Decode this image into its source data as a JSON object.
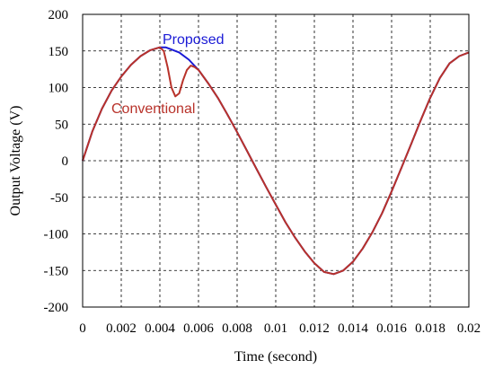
{
  "chart_data": {
    "type": "line",
    "xlabel": "Time (second)",
    "ylabel": "Output Voltage (V)",
    "xlim": [
      0,
      0.02
    ],
    "ylim": [
      -200,
      200
    ],
    "xticks": [
      "0",
      "0.002",
      "0.004",
      "0.006",
      "0.008",
      "0.01",
      "0.012",
      "0.014",
      "0.016",
      "0.018",
      "0.02"
    ],
    "yticks": [
      "200",
      "150",
      "100",
      "50",
      "0",
      "-50",
      "-100",
      "-150",
      "-200"
    ],
    "grid": true,
    "legend": "inline",
    "series": [
      {
        "name": "Proposed",
        "color": "#1a1ad6",
        "points": [
          [
            0,
            0
          ],
          [
            0.0005,
            40
          ],
          [
            0.001,
            71
          ],
          [
            0.0015,
            96
          ],
          [
            0.002,
            115
          ],
          [
            0.0025,
            131
          ],
          [
            0.003,
            143
          ],
          [
            0.0035,
            151
          ],
          [
            0.004,
            155
          ],
          [
            0.0043,
            155
          ],
          [
            0.0045,
            153
          ],
          [
            0.005,
            148
          ],
          [
            0.0055,
            138
          ],
          [
            0.006,
            124
          ],
          [
            0.0065,
            106
          ],
          [
            0.007,
            86
          ],
          [
            0.0075,
            63
          ],
          [
            0.008,
            39
          ],
          [
            0.0085,
            14
          ],
          [
            0.009,
            -11
          ],
          [
            0.0095,
            -36
          ],
          [
            0.01,
            -60
          ],
          [
            0.0105,
            -84
          ],
          [
            0.011,
            -105
          ],
          [
            0.0115,
            -124
          ],
          [
            0.012,
            -140
          ],
          [
            0.0125,
            -152
          ],
          [
            0.013,
            -155
          ],
          [
            0.0135,
            -150
          ],
          [
            0.014,
            -138
          ],
          [
            0.0145,
            -120
          ],
          [
            0.015,
            -98
          ],
          [
            0.0155,
            -72
          ],
          [
            0.016,
            -42
          ],
          [
            0.0165,
            -10
          ],
          [
            0.017,
            22
          ],
          [
            0.0175,
            55
          ],
          [
            0.018,
            86
          ],
          [
            0.0185,
            113
          ],
          [
            0.019,
            133
          ],
          [
            0.0195,
            143
          ],
          [
            0.02,
            148
          ]
        ]
      },
      {
        "name": "Conventional",
        "color": "#b8322a",
        "points": [
          [
            0,
            0
          ],
          [
            0.0005,
            40
          ],
          [
            0.001,
            71
          ],
          [
            0.0015,
            96
          ],
          [
            0.002,
            115
          ],
          [
            0.0025,
            131
          ],
          [
            0.003,
            143
          ],
          [
            0.0035,
            151
          ],
          [
            0.004,
            155
          ],
          [
            0.0042,
            150
          ],
          [
            0.0044,
            128
          ],
          [
            0.0046,
            100
          ],
          [
            0.0048,
            88
          ],
          [
            0.005,
            92
          ],
          [
            0.0052,
            110
          ],
          [
            0.0054,
            124
          ],
          [
            0.0056,
            130
          ],
          [
            0.0058,
            128
          ],
          [
            0.006,
            124
          ],
          [
            0.0065,
            106
          ],
          [
            0.007,
            86
          ],
          [
            0.0075,
            63
          ],
          [
            0.008,
            39
          ],
          [
            0.0085,
            14
          ],
          [
            0.009,
            -11
          ],
          [
            0.0095,
            -36
          ],
          [
            0.01,
            -60
          ],
          [
            0.0105,
            -84
          ],
          [
            0.011,
            -105
          ],
          [
            0.0115,
            -124
          ],
          [
            0.012,
            -140
          ],
          [
            0.0125,
            -152
          ],
          [
            0.013,
            -155
          ],
          [
            0.0135,
            -150
          ],
          [
            0.014,
            -138
          ],
          [
            0.0145,
            -120
          ],
          [
            0.015,
            -98
          ],
          [
            0.0155,
            -72
          ],
          [
            0.016,
            -42
          ],
          [
            0.0165,
            -10
          ],
          [
            0.017,
            22
          ],
          [
            0.0175,
            55
          ],
          [
            0.018,
            86
          ],
          [
            0.0185,
            113
          ],
          [
            0.019,
            133
          ],
          [
            0.0195,
            143
          ],
          [
            0.02,
            148
          ]
        ]
      }
    ]
  }
}
